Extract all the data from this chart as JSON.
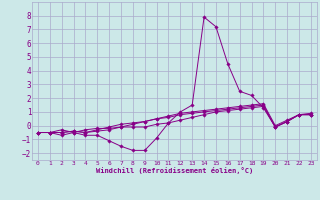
{
  "xlabel": "Windchill (Refroidissement éolien,°C)",
  "background_color": "#cce8e8",
  "grid_color": "#aaaacc",
  "line_color": "#880088",
  "xlim": [
    -0.5,
    23.5
  ],
  "ylim": [
    -2.5,
    9.0
  ],
  "xticks": [
    0,
    1,
    2,
    3,
    4,
    5,
    6,
    7,
    8,
    9,
    10,
    11,
    12,
    13,
    14,
    15,
    16,
    17,
    18,
    19,
    20,
    21,
    22,
    23
  ],
  "yticks": [
    -2,
    -1,
    0,
    1,
    2,
    3,
    4,
    5,
    6,
    7,
    8
  ],
  "series": [
    [
      0,
      -0.5
    ],
    [
      1,
      -0.5
    ],
    [
      2,
      -0.7
    ],
    [
      3,
      -0.5
    ],
    [
      4,
      -0.7
    ],
    [
      5,
      -0.7
    ],
    [
      6,
      -1.1
    ],
    [
      7,
      -1.5
    ],
    [
      8,
      -1.8
    ],
    [
      9,
      -1.8
    ],
    [
      10,
      -0.9
    ],
    [
      11,
      0.2
    ],
    [
      12,
      1.0
    ],
    [
      13,
      1.5
    ],
    [
      14,
      7.9
    ],
    [
      15,
      7.2
    ],
    [
      16,
      4.5
    ],
    [
      17,
      2.5
    ],
    [
      18,
      2.2
    ],
    [
      19,
      1.3
    ],
    [
      20,
      -0.1
    ],
    [
      21,
      0.3
    ],
    [
      22,
      0.8
    ],
    [
      23,
      0.8
    ]
  ],
  "series2": [
    [
      0,
      -0.5
    ],
    [
      1,
      -0.5
    ],
    [
      2,
      -0.3
    ],
    [
      3,
      -0.5
    ],
    [
      4,
      -0.3
    ],
    [
      5,
      -0.2
    ],
    [
      6,
      -0.2
    ],
    [
      7,
      -0.1
    ],
    [
      8,
      -0.1
    ],
    [
      9,
      -0.1
    ],
    [
      10,
      0.1
    ],
    [
      11,
      0.2
    ],
    [
      12,
      0.4
    ],
    [
      13,
      0.6
    ],
    [
      14,
      0.8
    ],
    [
      15,
      1.0
    ],
    [
      16,
      1.1
    ],
    [
      17,
      1.2
    ],
    [
      18,
      1.3
    ],
    [
      19,
      1.4
    ],
    [
      20,
      -0.1
    ],
    [
      21,
      0.3
    ],
    [
      22,
      0.8
    ],
    [
      23,
      0.8
    ]
  ],
  "series3": [
    [
      0,
      -0.5
    ],
    [
      1,
      -0.5
    ],
    [
      2,
      -0.5
    ],
    [
      3,
      -0.4
    ],
    [
      4,
      -0.5
    ],
    [
      5,
      -0.3
    ],
    [
      6,
      -0.1
    ],
    [
      7,
      0.1
    ],
    [
      8,
      0.2
    ],
    [
      9,
      0.3
    ],
    [
      10,
      0.5
    ],
    [
      11,
      0.6
    ],
    [
      12,
      0.8
    ],
    [
      13,
      0.9
    ],
    [
      14,
      1.0
    ],
    [
      15,
      1.1
    ],
    [
      16,
      1.2
    ],
    [
      17,
      1.3
    ],
    [
      18,
      1.4
    ],
    [
      19,
      1.5
    ],
    [
      20,
      -0.1
    ],
    [
      21,
      0.3
    ],
    [
      22,
      0.8
    ],
    [
      23,
      0.8
    ]
  ],
  "series4": [
    [
      0,
      -0.5
    ],
    [
      1,
      -0.5
    ],
    [
      2,
      -0.5
    ],
    [
      3,
      -0.4
    ],
    [
      4,
      -0.5
    ],
    [
      5,
      -0.4
    ],
    [
      6,
      -0.3
    ],
    [
      7,
      -0.1
    ],
    [
      8,
      0.1
    ],
    [
      9,
      0.3
    ],
    [
      10,
      0.5
    ],
    [
      11,
      0.7
    ],
    [
      12,
      0.9
    ],
    [
      13,
      1.0
    ],
    [
      14,
      1.1
    ],
    [
      15,
      1.2
    ],
    [
      16,
      1.3
    ],
    [
      17,
      1.4
    ],
    [
      18,
      1.5
    ],
    [
      19,
      1.6
    ],
    [
      20,
      0.0
    ],
    [
      21,
      0.4
    ],
    [
      22,
      0.8
    ],
    [
      23,
      0.9
    ]
  ]
}
